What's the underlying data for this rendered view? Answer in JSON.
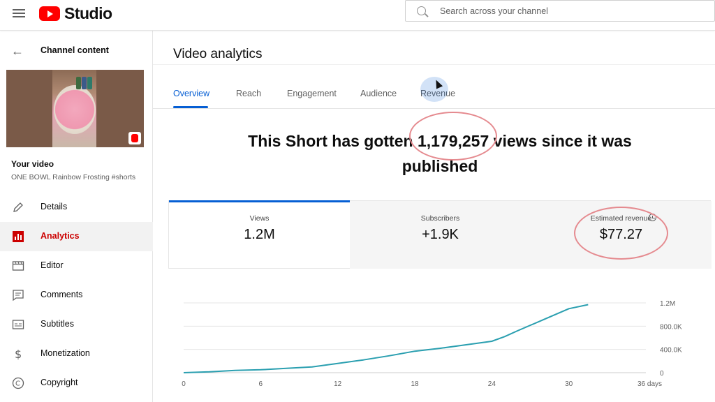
{
  "app": {
    "logo_text": "Studio"
  },
  "search": {
    "placeholder": "Search across your channel"
  },
  "sidebar": {
    "back_label": "Channel content",
    "your_video_label": "Your video",
    "video_title": "ONE BOWL Rainbow Frosting #shorts",
    "items": [
      {
        "label": "Details",
        "icon": "pencil-icon"
      },
      {
        "label": "Analytics",
        "icon": "analytics-icon",
        "active": true
      },
      {
        "label": "Editor",
        "icon": "clapperboard-icon"
      },
      {
        "label": "Comments",
        "icon": "comment-icon"
      },
      {
        "label": "Subtitles",
        "icon": "subtitles-icon"
      },
      {
        "label": "Monetization",
        "icon": "dollar-icon"
      },
      {
        "label": "Copyright",
        "icon": "copyright-icon"
      }
    ]
  },
  "main": {
    "page_title": "Video analytics",
    "tabs": [
      {
        "label": "Overview",
        "active": true
      },
      {
        "label": "Reach"
      },
      {
        "label": "Engagement"
      },
      {
        "label": "Audience"
      },
      {
        "label": "Revenue"
      }
    ],
    "headline": {
      "before": "This Short has gotten ",
      "count": "1,179,257",
      "after_line1": " views since it was",
      "line2": "published"
    },
    "cards": [
      {
        "title": "Views",
        "value": "1.2M",
        "active": true
      },
      {
        "title": "Subscribers",
        "value": "+1.9K"
      },
      {
        "title": "Estimated revenue",
        "value": "$77.27"
      }
    ]
  },
  "colors": {
    "accent": "#065fd4",
    "brand_red": "#ff0000",
    "line": "#2a9fb0",
    "annotation": "#e58a8f"
  },
  "chart_data": {
    "type": "line",
    "x_tick_labels": [
      "0",
      "6",
      "12",
      "18",
      "24",
      "30",
      "36 days"
    ],
    "y_tick_labels": [
      "0",
      "400.0K",
      "800.0K",
      "1.2M"
    ],
    "xlim": [
      0,
      36
    ],
    "ylim": [
      0,
      1200000
    ],
    "grid": true,
    "series": [
      {
        "x": [
          0,
          2,
          4,
          6,
          8,
          10,
          12,
          14,
          16,
          18,
          20,
          22,
          24,
          25,
          26,
          28,
          30,
          31.5
        ],
        "values": [
          0,
          15000,
          40000,
          50000,
          75000,
          100000,
          160000,
          220000,
          290000,
          370000,
          420000,
          480000,
          540000,
          620000,
          720000,
          910000,
          1100000,
          1170000
        ]
      }
    ]
  }
}
